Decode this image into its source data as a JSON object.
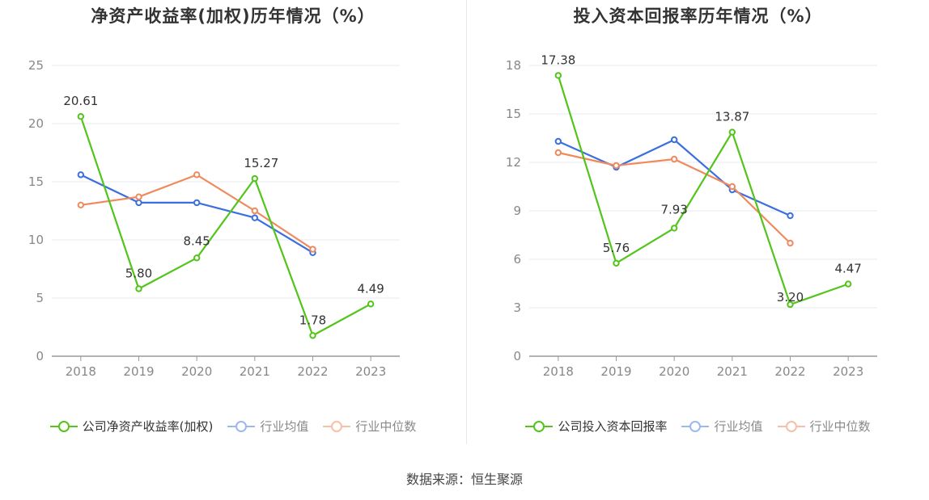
{
  "source_text": "数据来源：恒生聚源",
  "colors": {
    "company": "#52c41a",
    "avg": "#3b6fe0",
    "median": "#f08a5d",
    "grid": "#e6e9f0",
    "axis": "#999999"
  },
  "chart_data": [
    {
      "type": "line",
      "title": "净资产收益率(加权)历年情况（%）",
      "categories": [
        "2018",
        "2019",
        "2020",
        "2021",
        "2022",
        "2023"
      ],
      "ylim": [
        0,
        25
      ],
      "yticks": [
        "0",
        "5",
        "10",
        "15",
        "20",
        "25"
      ],
      "legend_position": "bottom",
      "grid": true,
      "series": [
        {
          "name": "公司净资产收益率(加权)",
          "color": "#52c41a",
          "values": [
            20.61,
            5.8,
            8.45,
            15.27,
            1.78,
            4.49
          ],
          "labels": [
            "20.61",
            "5.80",
            "8.45",
            "15.27",
            "1.78",
            "4.49"
          ]
        },
        {
          "name": "行业均值",
          "color": "#3b6fe0",
          "values": [
            15.6,
            13.2,
            13.2,
            11.9,
            8.9,
            null
          ]
        },
        {
          "name": "行业中位数",
          "color": "#f08a5d",
          "values": [
            13.0,
            13.7,
            15.6,
            12.5,
            9.2,
            null
          ]
        }
      ]
    },
    {
      "type": "line",
      "title": "投入资本回报率历年情况（%）",
      "categories": [
        "2018",
        "2019",
        "2020",
        "2021",
        "2022",
        "2023"
      ],
      "ylim": [
        0,
        18
      ],
      "yticks": [
        "0",
        "3",
        "6",
        "9",
        "12",
        "15",
        "18"
      ],
      "legend_position": "bottom",
      "grid": true,
      "series": [
        {
          "name": "公司投入资本回报率",
          "color": "#52c41a",
          "values": [
            17.38,
            5.76,
            7.93,
            13.87,
            3.2,
            4.47
          ],
          "labels": [
            "17.38",
            "5.76",
            "7.93",
            "13.87",
            "3.20",
            "4.47"
          ]
        },
        {
          "name": "行业均值",
          "color": "#3b6fe0",
          "values": [
            13.3,
            11.7,
            13.4,
            10.3,
            8.7,
            null
          ]
        },
        {
          "name": "行业中位数",
          "color": "#f08a5d",
          "values": [
            12.6,
            11.8,
            12.2,
            10.5,
            7.0,
            null
          ]
        }
      ]
    }
  ]
}
